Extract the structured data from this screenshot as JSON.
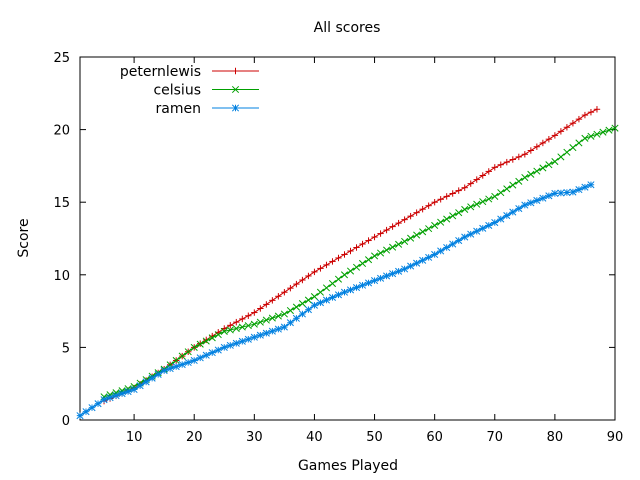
{
  "chart_data": {
    "type": "line",
    "title": "All scores",
    "xlabel": "Games Played",
    "ylabel": "Score",
    "xlim": [
      1,
      90
    ],
    "ylim": [
      0,
      25
    ],
    "xticks": [
      10,
      20,
      30,
      40,
      50,
      60,
      70,
      80,
      90
    ],
    "yticks": [
      0,
      5,
      10,
      15,
      20,
      25
    ],
    "grid": false,
    "legend_position": "top-left",
    "series": [
      {
        "name": "peternlewis",
        "color": "#cc0000",
        "marker": "plus",
        "points": [
          [
            5,
            1.3
          ],
          [
            10,
            2.2
          ],
          [
            15,
            3.5
          ],
          [
            20,
            5.0
          ],
          [
            25,
            6.3
          ],
          [
            30,
            7.4
          ],
          [
            35,
            8.8
          ],
          [
            40,
            10.2
          ],
          [
            45,
            11.4
          ],
          [
            50,
            12.6
          ],
          [
            55,
            13.8
          ],
          [
            60,
            15.0
          ],
          [
            65,
            16.0
          ],
          [
            70,
            17.4
          ],
          [
            75,
            18.3
          ],
          [
            80,
            19.6
          ],
          [
            85,
            21.0
          ],
          [
            87,
            21.4
          ]
        ]
      },
      {
        "name": "celsius",
        "color": "#00a000",
        "marker": "x",
        "points": [
          [
            5,
            1.6
          ],
          [
            10,
            2.3
          ],
          [
            15,
            3.5
          ],
          [
            20,
            5.0
          ],
          [
            25,
            6.1
          ],
          [
            30,
            6.6
          ],
          [
            35,
            7.3
          ],
          [
            40,
            8.5
          ],
          [
            45,
            10.0
          ],
          [
            50,
            11.3
          ],
          [
            55,
            12.3
          ],
          [
            60,
            13.4
          ],
          [
            65,
            14.5
          ],
          [
            70,
            15.4
          ],
          [
            75,
            16.7
          ],
          [
            80,
            17.8
          ],
          [
            85,
            19.4
          ],
          [
            90,
            20.1
          ]
        ]
      },
      {
        "name": "ramen",
        "color": "#0080e0",
        "marker": "star",
        "points": [
          [
            1,
            0.3
          ],
          [
            5,
            1.4
          ],
          [
            10,
            2.1
          ],
          [
            15,
            3.4
          ],
          [
            20,
            4.1
          ],
          [
            25,
            5.0
          ],
          [
            30,
            5.7
          ],
          [
            35,
            6.4
          ],
          [
            40,
            7.9
          ],
          [
            45,
            8.8
          ],
          [
            50,
            9.6
          ],
          [
            55,
            10.4
          ],
          [
            60,
            11.4
          ],
          [
            65,
            12.6
          ],
          [
            70,
            13.6
          ],
          [
            75,
            14.8
          ],
          [
            80,
            15.6
          ],
          [
            83,
            15.7
          ],
          [
            86,
            16.2
          ]
        ]
      }
    ]
  }
}
